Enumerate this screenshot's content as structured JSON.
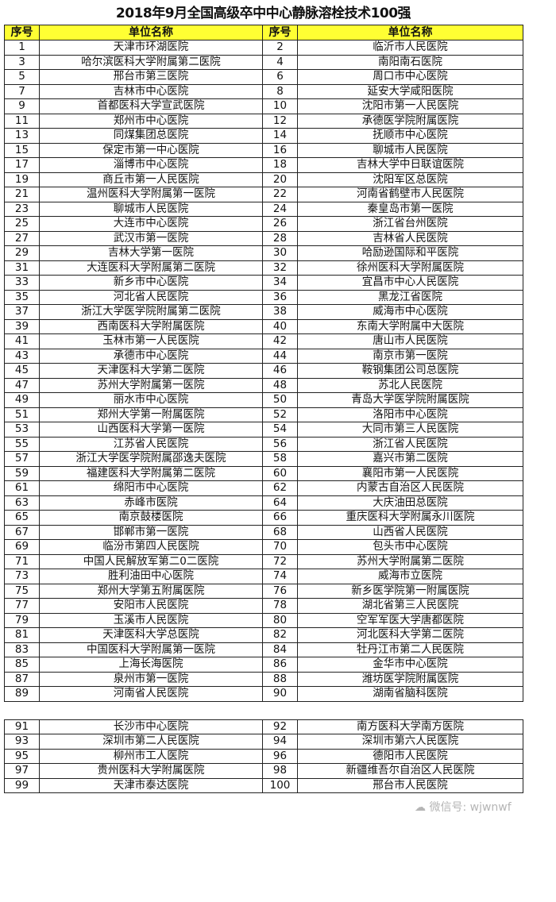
{
  "title": "2018年9月全国高级卒中中心静脉溶栓技术100强",
  "header": {
    "num": "序号",
    "name": "单位名称"
  },
  "rows": [
    [
      "1",
      "天津市环湖医院",
      "2",
      "临沂市人民医院"
    ],
    [
      "3",
      "哈尔滨医科大学附属第二医院",
      "4",
      "南阳南石医院"
    ],
    [
      "5",
      "邢台市第三医院",
      "6",
      "周口市中心医院"
    ],
    [
      "7",
      "吉林市中心医院",
      "8",
      "延安大学咸阳医院"
    ],
    [
      "9",
      "首都医科大学宣武医院",
      "10",
      "沈阳市第一人民医院"
    ],
    [
      "11",
      "郑州市中心医院",
      "12",
      "承德医学院附属医院"
    ],
    [
      "13",
      "同煤集团总医院",
      "14",
      "抚顺市中心医院"
    ],
    [
      "15",
      "保定市第一中心医院",
      "16",
      "聊城市人民医院"
    ],
    [
      "17",
      "淄博市中心医院",
      "18",
      "吉林大学中日联谊医院"
    ],
    [
      "19",
      "商丘市第一人民医院",
      "20",
      "沈阳军区总医院"
    ],
    [
      "21",
      "温州医科大学附属第一医院",
      "22",
      "河南省鹤壁市人民医院"
    ],
    [
      "23",
      "聊城市人民医院",
      "24",
      "秦皇岛市第一医院"
    ],
    [
      "25",
      "大连市中心医院",
      "26",
      "浙江省台州医院"
    ],
    [
      "27",
      "武汉市第一医院",
      "28",
      "吉林省人民医院"
    ],
    [
      "29",
      "吉林大学第一医院",
      "30",
      "哈励逊国际和平医院"
    ],
    [
      "31",
      "大连医科大学附属第二医院",
      "32",
      "徐州医科大学附属医院"
    ],
    [
      "33",
      "新乡市中心医院",
      "34",
      "宜昌市中心人民医院"
    ],
    [
      "35",
      "河北省人民医院",
      "36",
      "黑龙江省医院"
    ],
    [
      "37",
      "浙江大学医学院附属第二医院",
      "38",
      "威海市中心医院"
    ],
    [
      "39",
      "西南医科大学附属医院",
      "40",
      "东南大学附属中大医院"
    ],
    [
      "41",
      "玉林市第一人民医院",
      "42",
      "唐山市人民医院"
    ],
    [
      "43",
      "承德市中心医院",
      "44",
      "南京市第一医院"
    ],
    [
      "45",
      "天津医科大学第二医院",
      "46",
      "鞍钢集团公司总医院"
    ],
    [
      "47",
      "苏州大学附属第一医院",
      "48",
      "苏北人民医院"
    ],
    [
      "49",
      "丽水市中心医院",
      "50",
      "青岛大学医学院附属医院"
    ],
    [
      "51",
      "郑州大学第一附属医院",
      "52",
      "洛阳市中心医院"
    ],
    [
      "53",
      "山西医科大学第一医院",
      "54",
      "大同市第三人民医院"
    ],
    [
      "55",
      "江苏省人民医院",
      "56",
      "浙江省人民医院"
    ],
    [
      "57",
      "浙江大学医学院附属邵逸夫医院",
      "58",
      "嘉兴市第二医院"
    ],
    [
      "59",
      "福建医科大学附属第二医院",
      "60",
      "襄阳市第一人民医院"
    ],
    [
      "61",
      "绵阳市中心医院",
      "62",
      "内蒙古自治区人民医院"
    ],
    [
      "63",
      "赤峰市医院",
      "64",
      "大庆油田总医院"
    ],
    [
      "65",
      "南京鼓楼医院",
      "66",
      "重庆医科大学附属永川医院"
    ],
    [
      "67",
      "邯郸市第一医院",
      "68",
      "山西省人民医院"
    ],
    [
      "69",
      "临汾市第四人民医院",
      "70",
      "包头市中心医院"
    ],
    [
      "71",
      "中国人民解放军第二0二医院",
      "72",
      "苏州大学附属第二医院"
    ],
    [
      "73",
      "胜利油田中心医院",
      "74",
      "威海市立医院"
    ],
    [
      "75",
      "郑州大学第五附属医院",
      "76",
      "新乡医学院第一附属医院"
    ],
    [
      "77",
      "安阳市人民医院",
      "78",
      "湖北省第三人民医院"
    ],
    [
      "79",
      "玉溪市人民医院",
      "80",
      "空军军医大学唐都医院"
    ],
    [
      "81",
      "天津医科大学总医院",
      "82",
      "河北医科大学第二医院"
    ],
    [
      "83",
      "中国医科大学附属第一医院",
      "84",
      "牡丹江市第二人民医院"
    ],
    [
      "85",
      "上海长海医院",
      "86",
      "金华市中心医院"
    ],
    [
      "87",
      "泉州市第一医院",
      "88",
      "潍坊医学院附属医院"
    ],
    [
      "89",
      "河南省人民医院",
      "90",
      "湖南省脑科医院"
    ]
  ],
  "rows2": [
    [
      "91",
      "长沙市中心医院",
      "92",
      "南方医科大学南方医院"
    ],
    [
      "93",
      "深圳市第二人民医院",
      "94",
      "深圳市第六人民医院"
    ],
    [
      "95",
      "柳州市工人医院",
      "96",
      "德阳市人民医院"
    ],
    [
      "97",
      "贵州医科大学附属医院",
      "98",
      "新疆维吾尔自治区人民医院"
    ],
    [
      "99",
      "天津市泰达医院",
      "100",
      "邢台市人民医院"
    ]
  ],
  "header_color": "#ffff33",
  "watermark": "微信号: wjwnwf"
}
